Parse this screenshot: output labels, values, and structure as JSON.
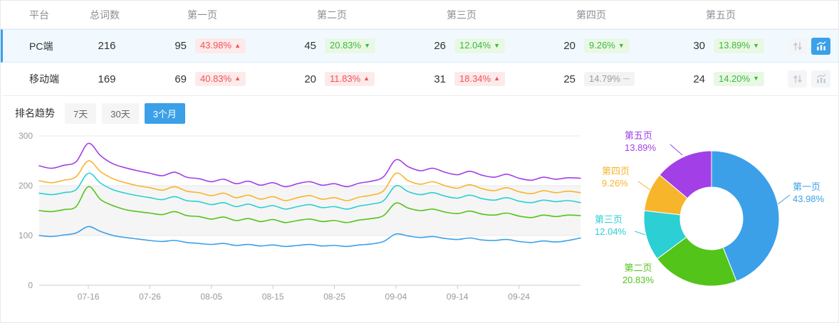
{
  "table": {
    "headers": [
      "平台",
      "总词数",
      "第一页",
      "第二页",
      "第三页",
      "第四页",
      "第五页"
    ],
    "rows": [
      {
        "platform": "PC端",
        "total": "216",
        "selected": true,
        "pages": [
          {
            "count": "95",
            "pct": "43.98%",
            "dir": "up",
            "arrow": "▲"
          },
          {
            "count": "45",
            "pct": "20.83%",
            "dir": "down",
            "arrow": "▼"
          },
          {
            "count": "26",
            "pct": "12.04%",
            "dir": "down",
            "arrow": "▼"
          },
          {
            "count": "20",
            "pct": "9.26%",
            "dir": "down",
            "arrow": "▼"
          },
          {
            "count": "30",
            "pct": "13.89%",
            "dir": "down",
            "arrow": "▼"
          }
        ]
      },
      {
        "platform": "移动端",
        "total": "169",
        "selected": false,
        "pages": [
          {
            "count": "69",
            "pct": "40.83%",
            "dir": "up",
            "arrow": "▲"
          },
          {
            "count": "20",
            "pct": "11.83%",
            "dir": "up",
            "arrow": "▲"
          },
          {
            "count": "31",
            "pct": "18.34%",
            "dir": "up",
            "arrow": "▲"
          },
          {
            "count": "25",
            "pct": "14.79%",
            "dir": "flat",
            "arrow": "—"
          },
          {
            "count": "24",
            "pct": "14.20%",
            "dir": "down",
            "arrow": "▼"
          }
        ]
      }
    ]
  },
  "trend": {
    "label": "排名趋势",
    "tabs": [
      {
        "label": "7天",
        "active": false
      },
      {
        "label": "30天",
        "active": false
      },
      {
        "label": "3个月",
        "active": true
      }
    ]
  },
  "chart_data": [
    {
      "type": "line",
      "title": "排名趋势 3个月",
      "x_tick_labels": [
        "07-16",
        "07-26",
        "08-05",
        "08-15",
        "08-25",
        "09-04",
        "09-14",
        "09-24"
      ],
      "x_tick_indices": [
        4,
        9,
        14,
        19,
        24,
        29,
        34,
        39
      ],
      "ylim": [
        0,
        300
      ],
      "y_ticks": [
        0,
        100,
        200,
        300
      ],
      "grid": true,
      "legend_position": "none",
      "series": [
        {
          "name": "第一页",
          "color": "#3ba0e8",
          "values": [
            100,
            98,
            101,
            105,
            118,
            108,
            100,
            96,
            93,
            90,
            88,
            90,
            86,
            84,
            82,
            84,
            80,
            82,
            79,
            81,
            78,
            80,
            82,
            79,
            80,
            78,
            81,
            83,
            88,
            103,
            99,
            96,
            98,
            94,
            92,
            95,
            91,
            90,
            92,
            88,
            86,
            89,
            87,
            90,
            95
          ]
        },
        {
          "name": "第二页",
          "color": "#52c41a",
          "values": [
            150,
            148,
            152,
            158,
            198,
            172,
            160,
            152,
            148,
            145,
            142,
            148,
            140,
            138,
            133,
            137,
            130,
            134,
            128,
            132,
            126,
            130,
            133,
            128,
            130,
            126,
            131,
            134,
            140,
            165,
            155,
            150,
            153,
            147,
            144,
            149,
            143,
            141,
            145,
            139,
            136,
            141,
            138,
            141,
            140
          ]
        },
        {
          "name": "第三页",
          "color": "#2bcfd4",
          "values": [
            185,
            182,
            186,
            192,
            225,
            205,
            192,
            185,
            180,
            176,
            172,
            178,
            170,
            168,
            162,
            166,
            158,
            163,
            156,
            160,
            153,
            158,
            162,
            156,
            158,
            153,
            159,
            163,
            170,
            200,
            188,
            182,
            186,
            179,
            175,
            181,
            174,
            171,
            176,
            169,
            166,
            171,
            168,
            170,
            166
          ]
        },
        {
          "name": "第四页",
          "color": "#f7b52c",
          "values": [
            210,
            206,
            211,
            218,
            250,
            228,
            214,
            206,
            200,
            196,
            191,
            198,
            189,
            186,
            180,
            185,
            176,
            181,
            173,
            178,
            170,
            176,
            180,
            173,
            176,
            170,
            177,
            181,
            190,
            225,
            210,
            203,
            208,
            200,
            195,
            202,
            194,
            190,
            196,
            188,
            184,
            190,
            186,
            189,
            186
          ]
        },
        {
          "name": "第五页",
          "color": "#a23fe6",
          "values": [
            240,
            235,
            241,
            248,
            285,
            260,
            244,
            236,
            230,
            225,
            220,
            227,
            217,
            214,
            208,
            213,
            204,
            209,
            201,
            206,
            198,
            204,
            208,
            201,
            204,
            198,
            205,
            209,
            218,
            252,
            238,
            230,
            235,
            227,
            222,
            229,
            221,
            217,
            223,
            215,
            211,
            217,
            213,
            216,
            215
          ]
        }
      ]
    },
    {
      "type": "pie",
      "donut": true,
      "labels": [
        "第一页",
        "第二页",
        "第三页",
        "第四页",
        "第五页"
      ],
      "values": [
        43.98,
        20.83,
        12.04,
        9.26,
        13.89
      ],
      "pct_labels": [
        "43.98%",
        "20.83%",
        "12.04%",
        "9.26%",
        "13.89%"
      ],
      "colors": [
        "#3ba0e8",
        "#52c41a",
        "#2bcfd4",
        "#f7b52c",
        "#a23fe6"
      ],
      "start_angle": "top",
      "direction": "clockwise",
      "inner_radius_ratio": 0.46,
      "legend_position": "outside-labels"
    }
  ],
  "colors": {
    "accent_blue": "#3ba0e8",
    "up_red": "#f15353",
    "down_green": "#3db93d",
    "flat_gray": "#9b9b9b"
  }
}
